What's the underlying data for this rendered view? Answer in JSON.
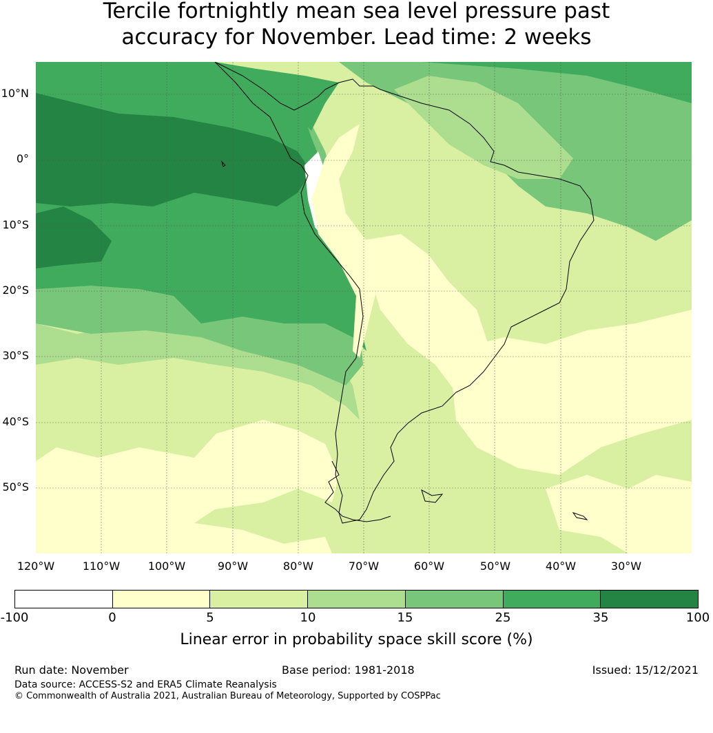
{
  "title": {
    "line1": "Tercile fortnightly mean sea level pressure past",
    "line2": "accuracy for November. Lead time: 2 weeks"
  },
  "map": {
    "lat_labels": [
      "10°N",
      "0°",
      "10°S",
      "20°S",
      "30°S",
      "40°S",
      "50°S"
    ],
    "lon_labels": [
      "120°W",
      "110°W",
      "100°W",
      "90°W",
      "80°W",
      "70°W",
      "60°W",
      "50°W",
      "40°W",
      "30°W"
    ],
    "extent": {
      "lon_min": -120,
      "lon_max": -20,
      "lat_min": -60,
      "lat_max": 15
    },
    "shading": {
      "note": "Skill score bands rendered as filled regions",
      "colors": [
        "#ffffff",
        "#ffffcc",
        "#d9f0a3",
        "#addd8e",
        "#78c679",
        "#41ab5d",
        "#238443"
      ]
    }
  },
  "colorbar": {
    "ticks": [
      "-100",
      "0",
      "5",
      "10",
      "15",
      "25",
      "35",
      "100"
    ],
    "colors": [
      "#ffffff",
      "#ffffcc",
      "#d9f0a3",
      "#addd8e",
      "#78c679",
      "#41ab5d",
      "#238443"
    ],
    "label": "Linear error in probability space skill score (%)"
  },
  "footer": {
    "run_date": "Run date: November",
    "base_period": "Base period: 1981-2018",
    "issued": "Issued: 15/12/2021",
    "data_source": "Data source: ACCESS-S2 and ERA5 Climate Reanalysis",
    "copyright": "© Commonwealth of Australia 2021, Australian Bureau of Meteorology, Supported by COSPPac"
  }
}
